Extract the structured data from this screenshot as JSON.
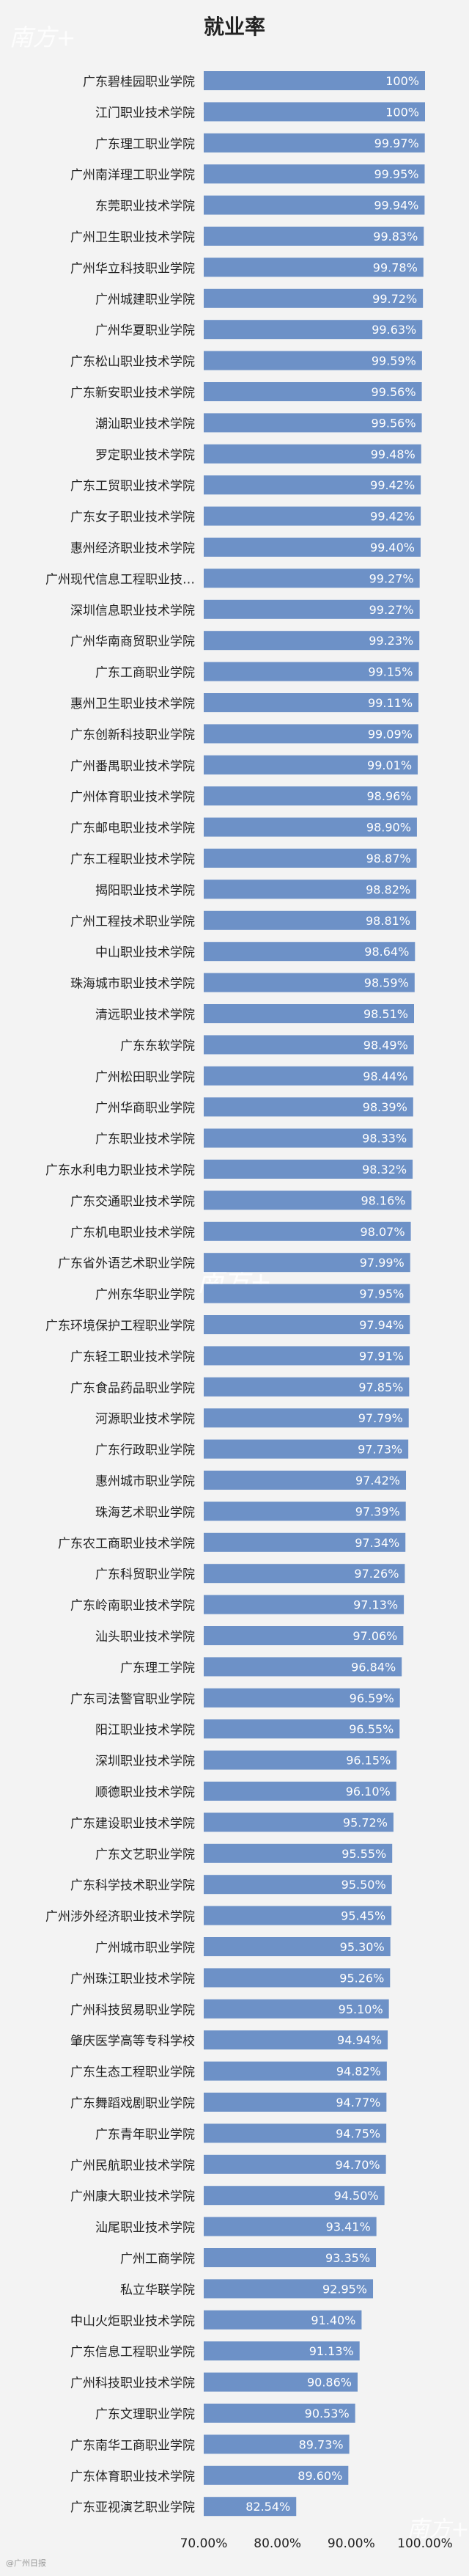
{
  "colors": {
    "bar": "#6d91c7",
    "background": "#f3f3f3",
    "text": "#222222",
    "value_text": "#ffffff"
  },
  "watermark": {
    "text": "南方+"
  },
  "credit": "@广州日报",
  "chart_data": {
    "type": "bar",
    "orientation": "horizontal",
    "title": "就业率",
    "xlim": [
      70,
      100
    ],
    "xticks": [
      "70.00%",
      "80.00%",
      "90.00%",
      "100.00%"
    ],
    "xtick_values": [
      70,
      80,
      90,
      100
    ],
    "grid": false,
    "categories": [
      "广东碧桂园职业学院",
      "江门职业技术学院",
      "广东理工职业学院",
      "广州南洋理工职业学院",
      "东莞职业技术学院",
      "广州卫生职业技术学院",
      "广州华立科技职业学院",
      "广州城建职业学院",
      "广州华夏职业学院",
      "广东松山职业技术学院",
      "广东新安职业技术学院",
      "潮汕职业技术学院",
      "罗定职业技术学院",
      "广东工贸职业技术学院",
      "广东女子职业技术学院",
      "惠州经济职业技术学院",
      "广州现代信息工程职业技…",
      "深圳信息职业技术学院",
      "广州华南商贸职业学院",
      "广东工商职业学院",
      "惠州卫生职业技术学院",
      "广东创新科技职业学院",
      "广州番禺职业技术学院",
      "广州体育职业技术学院",
      "广东邮电职业技术学院",
      "广东工程职业技术学院",
      "揭阳职业技术学院",
      "广州工程技术职业学院",
      "中山职业技术学院",
      "珠海城市职业技术学院",
      "清远职业技术学院",
      "广东东软学院",
      "广州松田职业学院",
      "广州华商职业学院",
      "广东职业技术学院",
      "广东水利电力职业技术学院",
      "广东交通职业技术学院",
      "广东机电职业技术学院",
      "广东省外语艺术职业学院",
      "广州东华职业学院",
      "广东环境保护工程职业学院",
      "广东轻工职业技术学院",
      "广东食品药品职业学院",
      "河源职业技术学院",
      "广东行政职业学院",
      "惠州城市职业学院",
      "珠海艺术职业学院",
      "广东农工商职业技术学院",
      "广东科贸职业学院",
      "广东岭南职业技术学院",
      "汕头职业技术学院",
      "广东理工学院",
      "广东司法警官职业学院",
      "阳江职业技术学院",
      "深圳职业技术学院",
      "顺德职业技术学院",
      "广东建设职业技术学院",
      "广东文艺职业学院",
      "广东科学技术职业学院",
      "广州涉外经济职业技术学院",
      "广州城市职业学院",
      "广州珠江职业技术学院",
      "广州科技贸易职业学院",
      "肇庆医学高等专科学校",
      "广东生态工程职业学院",
      "广东舞蹈戏剧职业学院",
      "广东青年职业学院",
      "广州民航职业技术学院",
      "广州康大职业技术学院",
      "汕尾职业技术学院",
      "广州工商学院",
      "私立华联学院",
      "中山火炬职业技术学院",
      "广东信息工程职业学院",
      "广州科技职业技术学院",
      "广东文理职业学院",
      "广东南华工商职业学院",
      "广东体育职业技术学院",
      "广东亚视演艺职业学院"
    ],
    "values": [
      100,
      100,
      99.97,
      99.95,
      99.94,
      99.83,
      99.78,
      99.72,
      99.63,
      99.59,
      99.56,
      99.56,
      99.48,
      99.42,
      99.42,
      99.4,
      99.27,
      99.27,
      99.23,
      99.15,
      99.11,
      99.09,
      99.01,
      98.96,
      98.9,
      98.87,
      98.82,
      98.81,
      98.64,
      98.59,
      98.51,
      98.49,
      98.44,
      98.39,
      98.33,
      98.32,
      98.16,
      98.07,
      97.99,
      97.95,
      97.94,
      97.91,
      97.85,
      97.79,
      97.73,
      97.42,
      97.39,
      97.34,
      97.26,
      97.13,
      97.06,
      96.84,
      96.59,
      96.55,
      96.15,
      96.1,
      95.72,
      95.55,
      95.5,
      95.45,
      95.3,
      95.26,
      95.1,
      94.94,
      94.82,
      94.77,
      94.75,
      94.7,
      94.5,
      93.41,
      93.35,
      92.95,
      91.4,
      91.13,
      90.86,
      90.53,
      89.73,
      89.6,
      82.54
    ],
    "value_labels": [
      "100%",
      "100%",
      "99.97%",
      "99.95%",
      "99.94%",
      "99.83%",
      "99.78%",
      "99.72%",
      "99.63%",
      "99.59%",
      "99.56%",
      "99.56%",
      "99.48%",
      "99.42%",
      "99.42%",
      "99.40%",
      "99.27%",
      "99.27%",
      "99.23%",
      "99.15%",
      "99.11%",
      "99.09%",
      "99.01%",
      "98.96%",
      "98.90%",
      "98.87%",
      "98.82%",
      "98.81%",
      "98.64%",
      "98.59%",
      "98.51%",
      "98.49%",
      "98.44%",
      "98.39%",
      "98.33%",
      "98.32%",
      "98.16%",
      "98.07%",
      "97.99%",
      "97.95%",
      "97.94%",
      "97.91%",
      "97.85%",
      "97.79%",
      "97.73%",
      "97.42%",
      "97.39%",
      "97.34%",
      "97.26%",
      "97.13%",
      "97.06%",
      "96.84%",
      "96.59%",
      "96.55%",
      "96.15%",
      "96.10%",
      "95.72%",
      "95.55%",
      "95.50%",
      "95.45%",
      "95.30%",
      "95.26%",
      "95.10%",
      "94.94%",
      "94.82%",
      "94.77%",
      "94.75%",
      "94.70%",
      "94.50%",
      "93.41%",
      "93.35%",
      "92.95%",
      "91.40%",
      "91.13%",
      "90.86%",
      "90.53%",
      "89.73%",
      "89.60%",
      "82.54%"
    ]
  }
}
